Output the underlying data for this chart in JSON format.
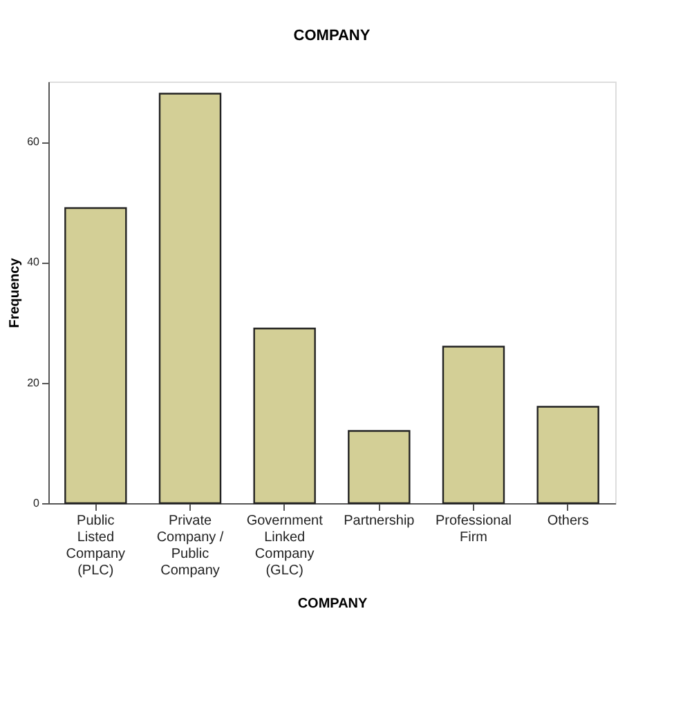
{
  "chart_data": {
    "type": "bar",
    "title": "COMPANY",
    "xlabel": "COMPANY",
    "ylabel": "Frequency",
    "categories": [
      "Public Listed Company (PLC)",
      "Private Company / Public Company",
      "Government Linked Company (GLC)",
      "Partnership",
      "Professional Firm",
      "Others"
    ],
    "values": [
      49,
      68,
      29,
      12,
      26,
      16
    ],
    "color": "#d3cf96",
    "ylim": [
      0,
      70
    ],
    "yticks": [
      0,
      20,
      40,
      60
    ],
    "grid": false
  }
}
